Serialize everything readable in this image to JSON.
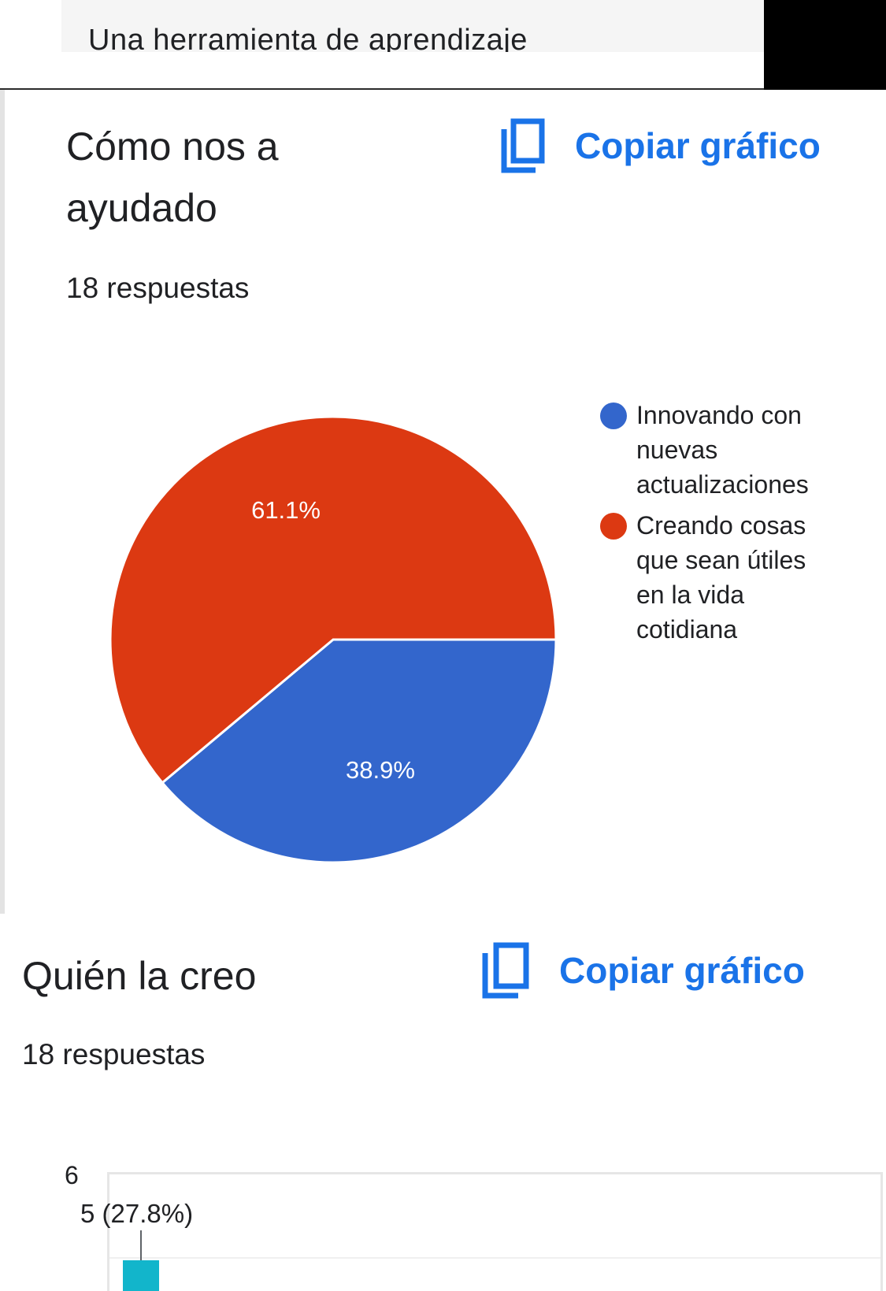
{
  "header": {
    "title": "Una herramienta de aprendizaje"
  },
  "questions": [
    {
      "title_line1": "Cómo nos a",
      "title_line2": "ayudado",
      "responses": "18 respuestas",
      "copy_label": "Copiar gráfico"
    },
    {
      "title": "Quién la creo",
      "responses": "18 respuestas",
      "copy_label": "Copiar gráfico"
    }
  ],
  "chart_data": [
    {
      "type": "pie",
      "slices": [
        {
          "label_lines": [
            "Innovando con",
            "nuevas",
            "actualizaciones"
          ],
          "percent": 38.9,
          "percent_label": "38.9%",
          "color": "#3366cc"
        },
        {
          "label_lines": [
            "Creando cosas",
            "que sean útiles",
            "en la vida",
            "cotidiana"
          ],
          "percent": 61.1,
          "percent_label": "61.1%",
          "color": "#dc3912"
        }
      ],
      "legend_position": "right"
    },
    {
      "type": "bar",
      "y_ticks": [
        "6"
      ],
      "bars": [
        {
          "value": 5,
          "label": "5 (27.8%)",
          "color": "#12b5cb"
        }
      ]
    }
  ],
  "colors": {
    "accent": "#1a73e8"
  }
}
